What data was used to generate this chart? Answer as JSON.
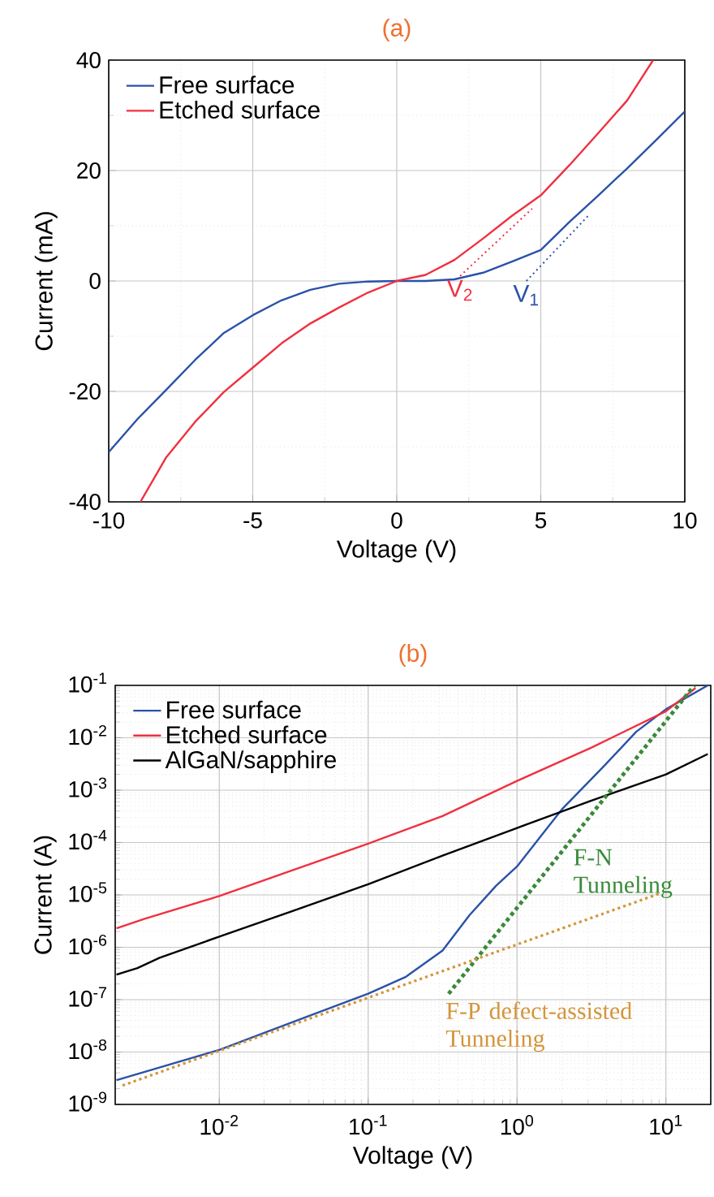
{
  "chart_data": [
    {
      "type": "line",
      "title": "(a)",
      "xlabel": "Voltage (V)",
      "ylabel": "Current (mA)",
      "xlim": [
        -10,
        10
      ],
      "ylim": [
        -40,
        40
      ],
      "xticks": [
        -10,
        -5,
        0,
        5,
        10
      ],
      "yticks": [
        -40,
        -20,
        0,
        20,
        40
      ],
      "grid": true,
      "legend": "top left",
      "series": [
        {
          "name": "Free surface",
          "color": "#2a52a8",
          "x": [
            -10,
            -9,
            -8,
            -7,
            -6,
            -5,
            -4,
            -3,
            -2,
            -1,
            0,
            1,
            2,
            3,
            4,
            5,
            6,
            7,
            8,
            9,
            10
          ],
          "values": [
            -31,
            -25,
            -19.7,
            -14.3,
            -9.4,
            -6.2,
            -3.5,
            -1.6,
            -0.5,
            -0.1,
            0,
            0,
            0.3,
            1.5,
            3.5,
            5.6,
            10.7,
            15.5,
            20.4,
            25.5,
            30.7
          ]
        },
        {
          "name": "Etched surface",
          "color": "#f03040",
          "x": [
            -8.9,
            -8,
            -7,
            -6,
            -5,
            -4,
            -3,
            -2,
            -1,
            0,
            1,
            2,
            3,
            4,
            5,
            6,
            7,
            8,
            8.9
          ],
          "values": [
            -40,
            -31.9,
            -25.5,
            -20.1,
            -15.7,
            -11.3,
            -7.7,
            -4.8,
            -2.1,
            0,
            1.1,
            3.8,
            7.7,
            11.8,
            15.5,
            21,
            26.8,
            32.7,
            40
          ]
        },
        {
          "name": "V$_{2}$",
          "type": "line",
          "line_style": "dotted",
          "color": "#f03040",
          "x": [
            2.2,
            4.7
          ],
          "values": [
            0.9,
            13.1
          ]
        },
        {
          "name": "V$_{1}$",
          "type": "line",
          "line_style": "dotted",
          "color": "#2a52a8",
          "x": [
            4.5,
            6.7
          ],
          "values": [
            0,
            12.1
          ]
        }
      ]
    },
    {
      "type": "line",
      "title": "(b)",
      "xlabel": "Voltage (V)",
      "ylabel": "Current (A)",
      "log": "xy",
      "xlim": [
        0.002,
        20
      ],
      "ylim": [
        1e-09,
        0.1
      ],
      "grid": true,
      "legend": "top left",
      "xticks": [
        {
          "value": 0.01,
          "label": "10$^{-2}$"
        },
        {
          "value": 0.1,
          "label": "10$^{-1}$"
        },
        {
          "value": 1,
          "label": "10$^{0}$"
        },
        {
          "value": 10,
          "label": "10$^{1}$"
        }
      ],
      "yticks": [
        {
          "value": 1e-09,
          "label": "10$^{-9}$"
        },
        {
          "value": 1e-08,
          "label": "10$^{-8}$"
        },
        {
          "value": 1e-07,
          "label": "10$^{-7}$"
        },
        {
          "value": 1e-06,
          "label": "10$^{-6}$"
        },
        {
          "value": 1e-05,
          "label": "10$^{-5}$"
        },
        {
          "value": 0.0001,
          "label": "10$^{-4}$"
        },
        {
          "value": 0.001,
          "label": "10$^{-3}$"
        },
        {
          "value": 0.01,
          "label": "10$^{-2}$"
        },
        {
          "value": 0.1,
          "label": "10$^{-1}$"
        }
      ],
      "series": [
        {
          "name": "Free surface",
          "color": "#2a52a8",
          "x": [
            0.00204,
            0.00316,
            0.01,
            0.0316,
            0.1,
            0.178,
            0.316,
            0.479,
            0.724,
            1,
            2.0,
            3.8,
            6.31,
            10,
            19.1
          ],
          "values": [
            2.9e-09,
            4.2e-09,
            1.1e-08,
            3.8e-08,
            1.3e-07,
            2.7e-07,
            8.7e-07,
            4.1e-06,
            1.5e-05,
            3.5e-05,
            0.00043,
            0.0028,
            0.013,
            0.035,
            0.1
          ]
        },
        {
          "name": "Etched surface",
          "color": "#f03040",
          "x": [
            0.00204,
            0.00316,
            0.01,
            0.0316,
            0.1,
            0.316,
            1,
            3.16,
            10,
            15.8
          ],
          "values": [
            2.3e-06,
            3.5e-06,
            9.5e-06,
            3e-05,
            9.5e-05,
            0.00032,
            0.0015,
            0.0065,
            0.032,
            0.089
          ]
        },
        {
          "name": "AlGaN/sapphire",
          "color": "#000000",
          "x": [
            0.00204,
            0.00282,
            0.00398,
            0.01,
            0.0316,
            0.1,
            0.316,
            1,
            3.16,
            10,
            19.1
          ],
          "values": [
            3e-07,
            4e-07,
            6.3e-07,
            1.6e-06,
            5e-06,
            1.6e-05,
            5.6e-05,
            0.00019,
            0.00063,
            0.002,
            0.0049
          ]
        },
        {
          "name": "F-N Tunneling",
          "type": "line",
          "line_style": "dotted",
          "color": "#3a8a3a",
          "x": [
            0.347,
            15.5
          ],
          "values": [
            1.3e-07,
            0.1
          ]
        },
        {
          "name": "F-P defect-assisted Tunneling",
          "type": "line",
          "line_style": "dotted",
          "color": "#d4953a",
          "x": [
            0.00224,
            9.12
          ],
          "values": [
            2.3e-09,
            1.07e-05
          ]
        }
      ]
    }
  ]
}
